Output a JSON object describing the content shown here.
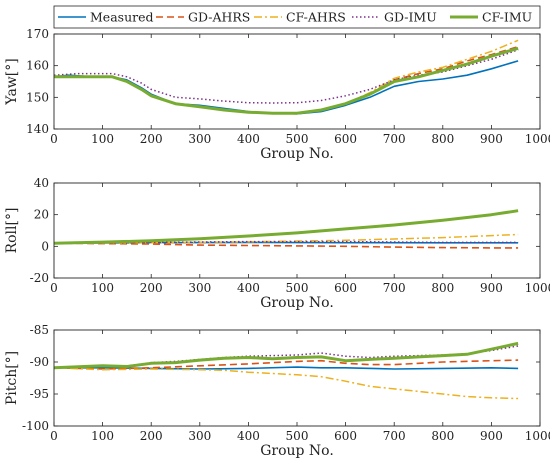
{
  "chart_data": [
    {
      "type": "line",
      "ylabel": "Yaw[°]",
      "xlabel": "Group No.",
      "xlim": [
        0,
        1000
      ],
      "ylim": [
        140,
        170
      ],
      "xticks": [
        0,
        100,
        200,
        300,
        400,
        500,
        600,
        700,
        800,
        900,
        1000
      ],
      "yticks": [
        140,
        150,
        160,
        170
      ],
      "legend": "top",
      "series": [
        {
          "name": "Measured",
          "color": "#0072BD",
          "dash": "solid",
          "x": [
            0,
            30,
            80,
            120,
            150,
            180,
            200,
            250,
            300,
            350,
            400,
            450,
            500,
            550,
            600,
            650,
            700,
            750,
            800,
            850,
            900,
            955
          ],
          "y": [
            156.5,
            157,
            156.5,
            156.5,
            155.5,
            153,
            151,
            148,
            147.5,
            146.5,
            145.5,
            145,
            144.8,
            145.5,
            147.5,
            150,
            153.5,
            155,
            155.8,
            157,
            159,
            161.5
          ]
        },
        {
          "name": "GD-AHRS",
          "color": "#D95319",
          "dash": "dash",
          "x": [
            0,
            50,
            100,
            120,
            150,
            180,
            200,
            250,
            300,
            350,
            400,
            450,
            500,
            550,
            600,
            650,
            700,
            750,
            800,
            850,
            900,
            955
          ],
          "y": [
            156.5,
            156.5,
            156.5,
            156.5,
            155,
            152.5,
            150.5,
            148,
            147,
            146,
            145.3,
            145,
            145,
            146,
            148,
            151,
            155.5,
            157.5,
            159,
            161.5,
            163.5,
            166
          ]
        },
        {
          "name": "CF-AHRS",
          "color": "#EDB120",
          "dash": "dashdot",
          "x": [
            0,
            50,
            100,
            120,
            150,
            180,
            200,
            250,
            300,
            350,
            400,
            450,
            500,
            550,
            600,
            650,
            700,
            750,
            800,
            850,
            900,
            955
          ],
          "y": [
            156.5,
            156.5,
            156.5,
            156.5,
            155,
            152.5,
            150.5,
            148,
            147,
            146,
            145.3,
            145,
            145,
            146,
            148,
            151.5,
            156,
            158,
            159.5,
            162,
            164.5,
            168
          ]
        },
        {
          "name": "GD-IMU",
          "color": "#7E2F8E",
          "dash": "dot",
          "x": [
            0,
            50,
            100,
            120,
            150,
            180,
            200,
            250,
            300,
            350,
            400,
            450,
            500,
            550,
            600,
            650,
            700,
            750,
            800,
            850,
            900,
            955
          ],
          "y": [
            157,
            157.5,
            157.5,
            157.5,
            156.5,
            154.5,
            152.5,
            150,
            149.5,
            148.8,
            148.3,
            148.2,
            148.3,
            149,
            150.5,
            152.5,
            155.5,
            157,
            158,
            160,
            162,
            165
          ]
        },
        {
          "name": "CF-IMU",
          "color": "#77AC30",
          "dash": "dashdotthick",
          "x": [
            0,
            50,
            100,
            120,
            150,
            180,
            200,
            250,
            300,
            350,
            400,
            450,
            500,
            550,
            600,
            650,
            700,
            750,
            800,
            850,
            900,
            955
          ],
          "y": [
            156.5,
            156.5,
            156.5,
            156.5,
            155,
            152.5,
            150.5,
            148,
            147,
            146,
            145.3,
            145,
            145,
            146,
            148,
            151,
            155,
            156.5,
            158.5,
            160.5,
            163,
            165.5
          ]
        }
      ]
    },
    {
      "type": "line",
      "ylabel": "Roll[°]",
      "xlabel": "Group No.",
      "xlim": [
        0,
        1000
      ],
      "ylim": [
        -20,
        40
      ],
      "xticks": [
        0,
        100,
        200,
        300,
        400,
        500,
        600,
        700,
        800,
        900,
        1000
      ],
      "yticks": [
        -20,
        0,
        20,
        40
      ],
      "series": [
        {
          "name": "Measured",
          "color": "#0072BD",
          "dash": "solid",
          "x": [
            0,
            200,
            400,
            600,
            800,
            955
          ],
          "y": [
            2,
            2.3,
            2.5,
            2.3,
            2.2,
            2.2
          ]
        },
        {
          "name": "GD-AHRS",
          "color": "#D95319",
          "dash": "dash",
          "x": [
            0,
            200,
            300,
            400,
            500,
            600,
            700,
            800,
            900,
            955
          ],
          "y": [
            2,
            1.5,
            0.8,
            0.5,
            0.3,
            0,
            -0.5,
            -0.8,
            -1,
            -1
          ]
        },
        {
          "name": "CF-AHRS",
          "color": "#EDB120",
          "dash": "dashdot",
          "x": [
            0,
            200,
            400,
            600,
            800,
            955
          ],
          "y": [
            2,
            2.3,
            2.8,
            3.8,
            5.5,
            7.5
          ]
        },
        {
          "name": "GD-IMU",
          "color": "#7E2F8E",
          "dash": "dot",
          "x": [
            0,
            200,
            400,
            600,
            800,
            955
          ],
          "y": [
            2,
            2.5,
            3,
            3,
            2.5,
            2.5
          ]
        },
        {
          "name": "CF-IMU",
          "color": "#77AC30",
          "dash": "dashdotthick",
          "x": [
            0,
            100,
            200,
            300,
            400,
            500,
            600,
            700,
            800,
            900,
            955
          ],
          "y": [
            2,
            2.7,
            3.5,
            4.8,
            6.5,
            8.5,
            11,
            13.5,
            16.5,
            20,
            22.5
          ]
        }
      ]
    },
    {
      "type": "line",
      "ylabel": "Pitch[°]",
      "xlabel": "Group No.",
      "xlim": [
        0,
        1000
      ],
      "ylim": [
        -100,
        -85
      ],
      "xticks": [
        0,
        100,
        200,
        300,
        400,
        500,
        600,
        700,
        800,
        900,
        1000
      ],
      "yticks": [
        -100,
        -95,
        -90,
        -85
      ],
      "series": [
        {
          "name": "Measured",
          "color": "#0072BD",
          "dash": "solid",
          "x": [
            0,
            100,
            200,
            300,
            400,
            500,
            550,
            600,
            700,
            800,
            900,
            955
          ],
          "y": [
            -90.9,
            -90.9,
            -91,
            -91.1,
            -91.0,
            -90.8,
            -90.9,
            -90.9,
            -91.1,
            -91.0,
            -90.9,
            -91.0
          ]
        },
        {
          "name": "GD-AHRS",
          "color": "#D95319",
          "dash": "dash",
          "x": [
            0,
            100,
            200,
            300,
            400,
            500,
            550,
            600,
            650,
            700,
            800,
            900,
            955
          ],
          "y": [
            -90.9,
            -91.1,
            -90.9,
            -90.6,
            -90.3,
            -89.9,
            -89.8,
            -90.2,
            -90.4,
            -90.4,
            -90.0,
            -89.8,
            -89.7
          ]
        },
        {
          "name": "CF-AHRS",
          "color": "#EDB120",
          "dash": "dashdot",
          "x": [
            0,
            100,
            200,
            300,
            350,
            400,
            450,
            500,
            550,
            600,
            650,
            700,
            750,
            800,
            850,
            900,
            955
          ],
          "y": [
            -90.9,
            -91.2,
            -91.1,
            -91.2,
            -91.3,
            -91.6,
            -91.8,
            -92.0,
            -92.3,
            -93.0,
            -93.8,
            -94.2,
            -94.6,
            -95.0,
            -95.4,
            -95.6,
            -95.7
          ]
        },
        {
          "name": "GD-IMU",
          "color": "#7E2F8E",
          "dash": "dot",
          "x": [
            0,
            100,
            150,
            200,
            250,
            300,
            350,
            400,
            450,
            500,
            550,
            600,
            650,
            700,
            750,
            800,
            850,
            900,
            955
          ],
          "y": [
            -90.9,
            -90.6,
            -90.6,
            -90.1,
            -89.9,
            -89.6,
            -89.3,
            -89.1,
            -89.0,
            -88.9,
            -88.6,
            -89.1,
            -89.3,
            -89.1,
            -89.0,
            -88.9,
            -88.7,
            -88.2,
            -87.5
          ]
        },
        {
          "name": "CF-IMU",
          "color": "#77AC30",
          "dash": "dashdotthick",
          "x": [
            0,
            100,
            150,
            200,
            250,
            300,
            350,
            400,
            450,
            500,
            550,
            600,
            650,
            700,
            750,
            800,
            850,
            900,
            955
          ],
          "y": [
            -90.9,
            -90.6,
            -90.7,
            -90.2,
            -90.1,
            -89.7,
            -89.4,
            -89.3,
            -89.5,
            -89.3,
            -89.2,
            -89.8,
            -89.6,
            -89.4,
            -89.2,
            -89.0,
            -88.8,
            -88.0,
            -87.1
          ]
        }
      ]
    }
  ]
}
